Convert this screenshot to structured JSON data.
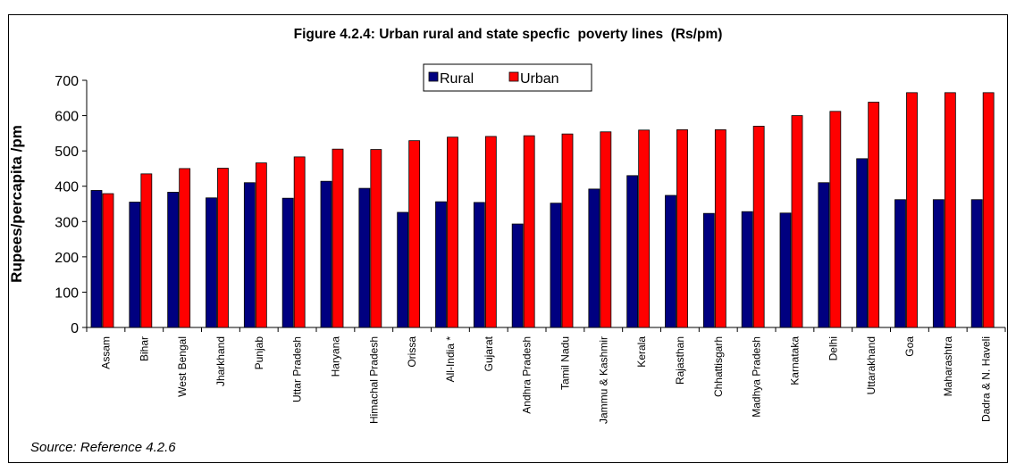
{
  "chart_data": {
    "type": "bar",
    "title": "Figure 4.2.4: Urban rural and state specfic  poverty lines  (Rs/pm)",
    "xlabel": "",
    "ylabel": "Rupees/percapita  /pm",
    "ylim": [
      0,
      700
    ],
    "yticks": [
      0,
      100,
      200,
      300,
      400,
      500,
      600,
      700
    ],
    "grid": false,
    "legend": "top-center",
    "categories": [
      "Assam",
      "Bihar",
      "West Bengal",
      "Jharkhand",
      "Punjab",
      "Uttar Pradesh",
      "Haryana",
      "Himachal Pradesh",
      "Orissa",
      "All-India *",
      "Gujarat",
      "Andhra Pradesh",
      "Tamil Nadu",
      "Jammu & Kashmir",
      "Kerala",
      "Rajasthan",
      "Chhattisgarh",
      "Madhya Pradesh",
      "Karnataka",
      "Delhi",
      "Uttarakhand",
      "Goa",
      "Maharashtra",
      "Dadra & N. Haveli"
    ],
    "series": [
      {
        "name": "Rural",
        "color": "#000080",
        "values": [
          388,
          355,
          383,
          367,
          410,
          366,
          414,
          394,
          326,
          356,
          354,
          293,
          352,
          392,
          430,
          374,
          323,
          328,
          324,
          410,
          478,
          362,
          362,
          362
        ]
      },
      {
        "name": "Urban",
        "color": "#ff0000",
        "values": [
          379,
          435,
          450,
          451,
          466,
          483,
          505,
          504,
          529,
          539,
          541,
          543,
          548,
          554,
          559,
          560,
          560,
          570,
          600,
          612,
          638,
          665,
          665,
          665
        ]
      }
    ]
  },
  "source": "Source: Reference 4.2.6"
}
